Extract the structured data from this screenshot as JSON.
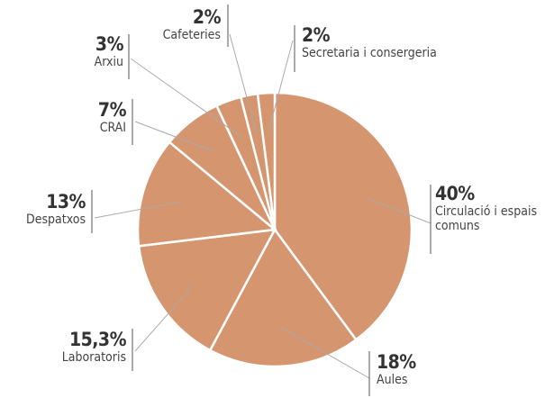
{
  "chart_data": {
    "type": "pie",
    "categories": [
      "Circulació i espais comuns",
      "Aules",
      "Laboratoris",
      "Despatxos",
      "CRAI",
      "Arxiu",
      "Cafeteries",
      "Secretaria i consergeria"
    ],
    "values": [
      40,
      18,
      15.3,
      13,
      7,
      3,
      2,
      2
    ],
    "value_labels": [
      "40%",
      "18%",
      "15,3%",
      "13%",
      "7%",
      "3%",
      "2%",
      "2%"
    ],
    "color": "#d4956f"
  }
}
